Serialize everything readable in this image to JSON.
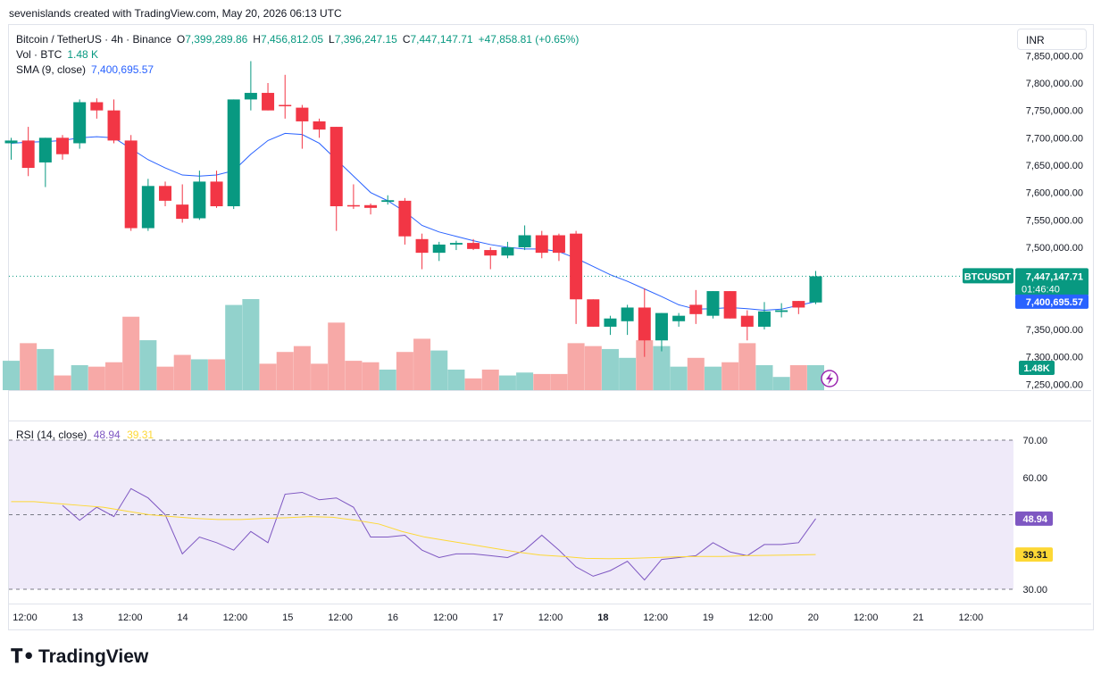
{
  "header": {
    "credit": "sevenislands created with TradingView.com, May 20, 2026 06:13 UTC"
  },
  "legend": {
    "symbol": "Bitcoin / TetherUS · 4h · Binance",
    "o_label": "O",
    "o": "7,399,289.86",
    "h_label": "H",
    "h": "7,456,812.05",
    "l_label": "L",
    "l": "7,396,247.15",
    "c_label": "C",
    "c": "7,447,147.71",
    "change": "+47,858.81 (+0.65%)",
    "vol_label": "Vol · BTC",
    "vol": "1.48 K",
    "sma_label": "SMA (9, close)",
    "sma": "7,400,695.57"
  },
  "currency": "INR",
  "price_axis": {
    "ticks": [
      "7,850,000.00",
      "7,800,000.00",
      "7,750,000.00",
      "7,700,000.00",
      "7,650,000.00",
      "7,600,000.00",
      "7,550,000.00",
      "7,500,000.00",
      "7,350,000.00",
      "7,300,000.00",
      "7,250,000.00"
    ],
    "tick_values": [
      7850000,
      7800000,
      7750000,
      7700000,
      7650000,
      7600000,
      7550000,
      7500000,
      7350000,
      7300000,
      7250000
    ]
  },
  "badges": {
    "symbol_tag": "BTCUSDT",
    "last_price": "7,447,147.71",
    "countdown": "01:46:40",
    "sma_value": "7,400,695.57",
    "vol_value": "1.48K"
  },
  "rsi": {
    "label": "RSI (14, close)",
    "value": "48.94",
    "ma_value": "39.31",
    "ticks": [
      "70.00",
      "60.00",
      "30.00"
    ],
    "tick_values": [
      70,
      60,
      30
    ],
    "band": [
      30,
      70
    ]
  },
  "time_axis": [
    "12:00",
    "13",
    "12:00",
    "14",
    "12:00",
    "15",
    "12:00",
    "16",
    "12:00",
    "17",
    "12:00",
    "18",
    "12:00",
    "19",
    "12:00",
    "20",
    "12:00",
    "21",
    "12:00"
  ],
  "colors": {
    "up": "#089981",
    "down": "#f23645",
    "up_vol": "#92d2cc",
    "down_vol": "#f7a9a7",
    "sma": "#2962ff",
    "rsi": "#7e57c2",
    "rsi_ma": "#fdd835",
    "band": "#efeaf9"
  },
  "chart_data": [
    {
      "type": "candlestick",
      "title": "Bitcoin / TetherUS · 4h · Binance",
      "ylim": [
        7240000,
        7870000
      ],
      "candles": [
        {
          "o": 7690000,
          "h": 7700000,
          "l": 7660000,
          "c": 7695000
        },
        {
          "o": 7695000,
          "h": 7720000,
          "l": 7630000,
          "c": 7645000
        },
        {
          "o": 7655000,
          "h": 7700000,
          "l": 7610000,
          "c": 7700000
        },
        {
          "o": 7700000,
          "h": 7705000,
          "l": 7660000,
          "c": 7670000
        },
        {
          "o": 7690000,
          "h": 7770000,
          "l": 7680000,
          "c": 7765000
        },
        {
          "o": 7765000,
          "h": 7772000,
          "l": 7735000,
          "c": 7750000
        },
        {
          "o": 7750000,
          "h": 7770000,
          "l": 7690000,
          "c": 7695000
        },
        {
          "o": 7695000,
          "h": 7705000,
          "l": 7530000,
          "c": 7535000
        },
        {
          "o": 7535000,
          "h": 7625000,
          "l": 7530000,
          "c": 7612000
        },
        {
          "o": 7612000,
          "h": 7620000,
          "l": 7575000,
          "c": 7585000
        },
        {
          "o": 7578000,
          "h": 7615000,
          "l": 7545000,
          "c": 7552000
        },
        {
          "o": 7553000,
          "h": 7640000,
          "l": 7550000,
          "c": 7620000
        },
        {
          "o": 7620000,
          "h": 7640000,
          "l": 7572000,
          "c": 7575000
        },
        {
          "o": 7575000,
          "h": 7770000,
          "l": 7570000,
          "c": 7770000
        },
        {
          "o": 7770000,
          "h": 7840000,
          "l": 7750000,
          "c": 7782000
        },
        {
          "o": 7782000,
          "h": 7800000,
          "l": 7750000,
          "c": 7750000
        },
        {
          "o": 7760000,
          "h": 7815000,
          "l": 7735000,
          "c": 7758000
        },
        {
          "o": 7755000,
          "h": 7760000,
          "l": 7680000,
          "c": 7730000
        },
        {
          "o": 7730000,
          "h": 7735000,
          "l": 7700000,
          "c": 7715000
        },
        {
          "o": 7720000,
          "h": 7720000,
          "l": 7530000,
          "c": 7575000
        },
        {
          "o": 7577000,
          "h": 7615000,
          "l": 7570000,
          "c": 7575000
        },
        {
          "o": 7577000,
          "h": 7580000,
          "l": 7560000,
          "c": 7572000
        },
        {
          "o": 7583000,
          "h": 7595000,
          "l": 7578000,
          "c": 7586000
        },
        {
          "o": 7585000,
          "h": 7590000,
          "l": 7505000,
          "c": 7520000
        },
        {
          "o": 7515000,
          "h": 7525000,
          "l": 7460000,
          "c": 7490000
        },
        {
          "o": 7490000,
          "h": 7510000,
          "l": 7475000,
          "c": 7505000
        },
        {
          "o": 7505000,
          "h": 7512000,
          "l": 7495000,
          "c": 7508000
        },
        {
          "o": 7508000,
          "h": 7515000,
          "l": 7495000,
          "c": 7497000
        },
        {
          "o": 7495000,
          "h": 7500000,
          "l": 7460000,
          "c": 7485000
        },
        {
          "o": 7485000,
          "h": 7510000,
          "l": 7480000,
          "c": 7500000
        },
        {
          "o": 7500000,
          "h": 7540000,
          "l": 7495000,
          "c": 7522000
        },
        {
          "o": 7522000,
          "h": 7530000,
          "l": 7480000,
          "c": 7490000
        },
        {
          "o": 7522000,
          "h": 7525000,
          "l": 7475000,
          "c": 7490000
        },
        {
          "o": 7525000,
          "h": 7530000,
          "l": 7360000,
          "c": 7405000
        },
        {
          "o": 7405000,
          "h": 7405000,
          "l": 7355000,
          "c": 7355000
        },
        {
          "o": 7355000,
          "h": 7375000,
          "l": 7340000,
          "c": 7370000
        },
        {
          "o": 7365000,
          "h": 7395000,
          "l": 7340000,
          "c": 7390000
        },
        {
          "o": 7390000,
          "h": 7425000,
          "l": 7300000,
          "c": 7330000
        },
        {
          "o": 7330000,
          "h": 7380000,
          "l": 7310000,
          "c": 7380000
        },
        {
          "o": 7365000,
          "h": 7380000,
          "l": 7355000,
          "c": 7375000
        },
        {
          "o": 7395000,
          "h": 7422000,
          "l": 7360000,
          "c": 7378000
        },
        {
          "o": 7375000,
          "h": 7420000,
          "l": 7370000,
          "c": 7420000
        },
        {
          "o": 7420000,
          "h": 7420000,
          "l": 7370000,
          "c": 7370000
        },
        {
          "o": 7375000,
          "h": 7385000,
          "l": 7330000,
          "c": 7355000
        },
        {
          "o": 7355000,
          "h": 7400000,
          "l": 7350000,
          "c": 7383000
        },
        {
          "o": 7382000,
          "h": 7398000,
          "l": 7372000,
          "c": 7385000
        },
        {
          "o": 7402000,
          "h": 7402000,
          "l": 7378000,
          "c": 7390000
        },
        {
          "o": 7399290,
          "h": 7456812,
          "l": 7396247,
          "c": 7447148
        }
      ],
      "sma": [
        7690000,
        7692000,
        7693000,
        7695000,
        7700000,
        7702000,
        7700000,
        7680000,
        7660000,
        7645000,
        7632000,
        7630000,
        7632000,
        7640000,
        7670000,
        7695000,
        7708000,
        7706000,
        7690000,
        7660000,
        7630000,
        7600000,
        7585000,
        7565000,
        7540000,
        7528000,
        7520000,
        7512000,
        7505000,
        7500000,
        7497000,
        7497000,
        7492000,
        7480000,
        7465000,
        7450000,
        7438000,
        7424000,
        7410000,
        7395000,
        7387000,
        7388000,
        7390000,
        7388000,
        7385000,
        7387000,
        7394000,
        7400696
      ],
      "volume": [
        20,
        32,
        28,
        10,
        17,
        16,
        19,
        50,
        34,
        16,
        24,
        21,
        21,
        58,
        62,
        18,
        26,
        30,
        18,
        46,
        20,
        19,
        14,
        26,
        35,
        27,
        14,
        8,
        14,
        10,
        12,
        11,
        11,
        32,
        30,
        28,
        22,
        34,
        30,
        16,
        22,
        16,
        19,
        32,
        17,
        9,
        17,
        17
      ]
    },
    {
      "type": "line",
      "title": "RSI (14, close)",
      "ylim": [
        26,
        75
      ],
      "series": [
        {
          "values": [
            52.5,
            48.5,
            52.0,
            49.5,
            57.0,
            54.5,
            50.0,
            39.5,
            44.0,
            42.5,
            40.5,
            45.5,
            42.5,
            55.5,
            56.0,
            54.0,
            54.5,
            52.0,
            44.0,
            44.0,
            44.5,
            40.5,
            38.5,
            39.5,
            39.5,
            39.0,
            38.5,
            40.5,
            44.5,
            40.5,
            36.0,
            33.5,
            35.0,
            37.5,
            32.5,
            38.0,
            38.5,
            39.0,
            42.5,
            40.0,
            39.0,
            42.0,
            42.0,
            42.5,
            48.94
          ]
        },
        {
          "values": [
            53.5,
            53.5,
            53.0,
            52.5,
            52.0,
            51.0,
            50.0,
            49.5,
            49.0,
            48.7,
            48.7,
            49.0,
            49.2,
            49.5,
            49.3,
            48.5,
            47.5,
            45.5,
            44.0,
            43.0,
            42.0,
            41.0,
            40.0,
            39.2,
            38.8,
            38.3,
            38.2,
            38.3,
            38.5,
            38.7,
            38.8,
            38.8,
            39.0,
            39.1,
            39.2,
            39.31
          ]
        }
      ]
    }
  ]
}
